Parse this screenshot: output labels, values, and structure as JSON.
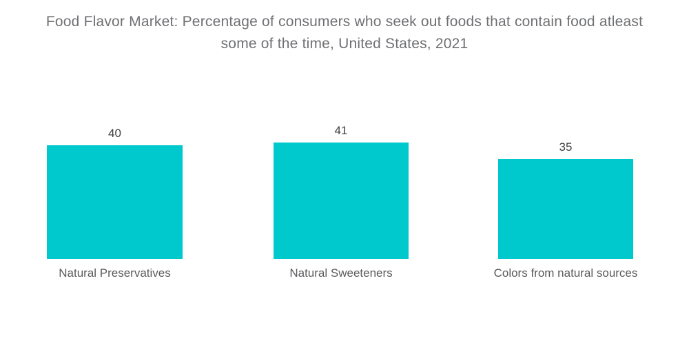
{
  "title": {
    "line1": "Food Flavor Market: Percentage of consumers who seek out foods that contain food atleast",
    "line2": "some of the time, United States, 2021"
  },
  "colors": {
    "bar": "#00C9CE",
    "title_text": "#6F7073",
    "value_text": "#414042",
    "category_text": "#5A5B5E",
    "background": "#FFFFFF"
  },
  "chart_data": {
    "type": "bar",
    "title": "Food Flavor Market: Percentage of consumers who seek out foods that contain food atleast some of the time, United States, 2021",
    "categories": [
      "Natural Preservatives",
      "Natural Sweeteners",
      "Colors from natural sources"
    ],
    "values": [
      40,
      41,
      35
    ],
    "xlabel": "",
    "ylabel": "",
    "ylim": [
      0,
      41
    ],
    "grid": false,
    "legend": false,
    "axes_visible": false,
    "value_labels_position": "above bars",
    "bar_color": "#00C9CE"
  }
}
